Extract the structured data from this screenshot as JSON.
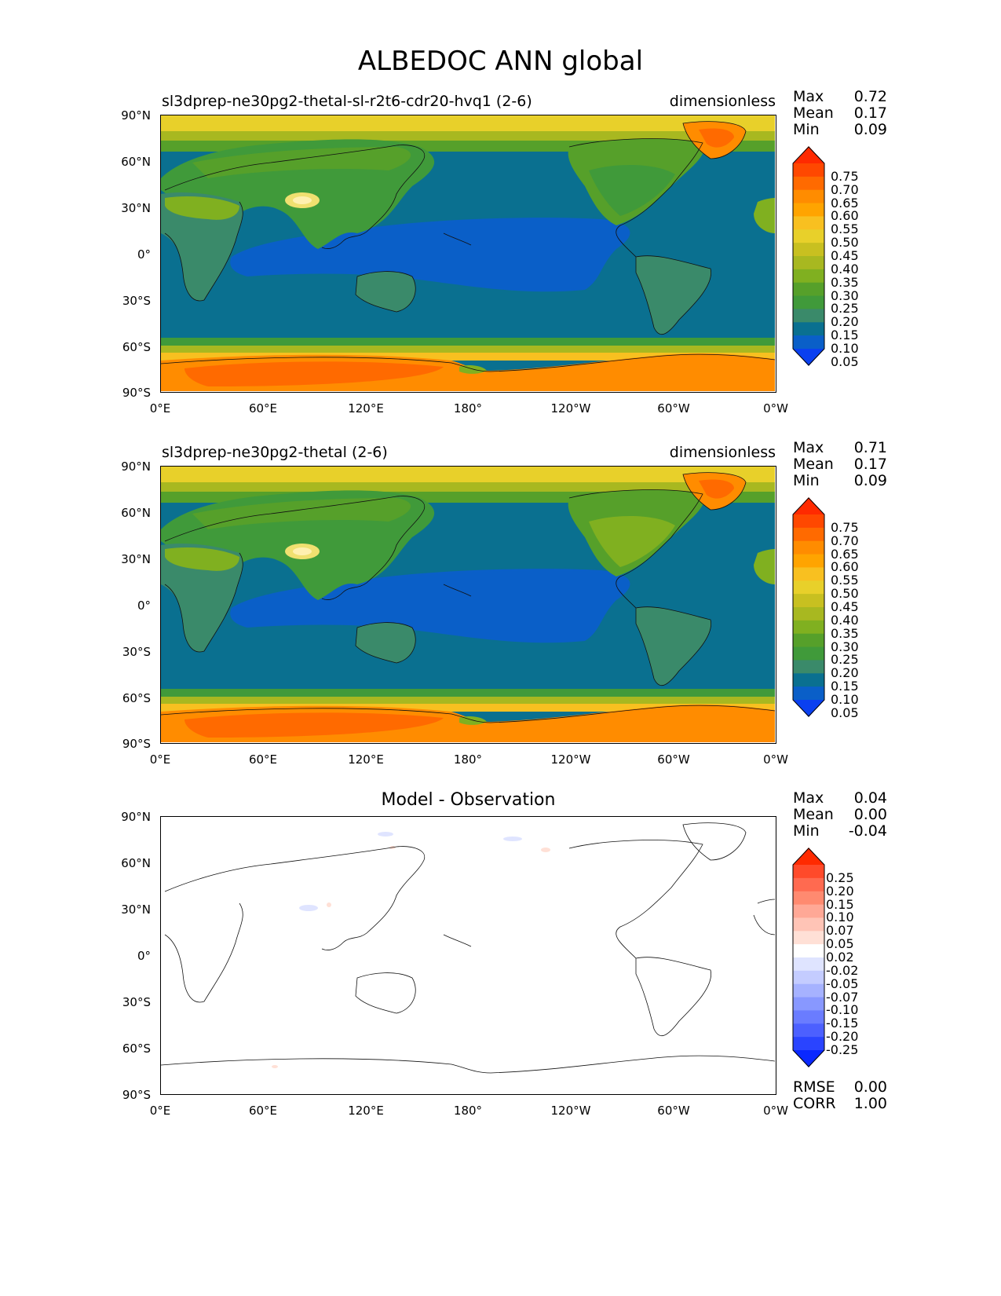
{
  "figure": {
    "title": "ALBEDOC ANN global",
    "units_label": "dimensionless",
    "lat_ticks": [
      "90°N",
      "60°N",
      "30°N",
      "0°",
      "30°S",
      "60°S",
      "90°S"
    ],
    "lon_ticks": [
      "0°E",
      "60°E",
      "120°E",
      "180°",
      "120°W",
      "60°W",
      "0°W"
    ]
  },
  "panels": [
    {
      "title": "sl3dprep-ne30pg2-thetal-sl-r2t6-cdr20-hvq1 (2-6)",
      "stats": [
        {
          "name": "Max",
          "value": "0.72"
        },
        {
          "name": "Mean",
          "value": "0.17"
        },
        {
          "name": "Min",
          "value": "0.09"
        }
      ]
    },
    {
      "title": "sl3dprep-ne30pg2-thetal (2-6)",
      "stats": [
        {
          "name": "Max",
          "value": "0.71"
        },
        {
          "name": "Mean",
          "value": "0.17"
        },
        {
          "name": "Min",
          "value": "0.09"
        }
      ]
    },
    {
      "title": "Model - Observation",
      "stats": [
        {
          "name": "Max",
          "value": "0.04"
        },
        {
          "name": "Mean",
          "value": "0.00"
        },
        {
          "name": "Min",
          "value": "-0.04"
        }
      ],
      "metrics": [
        {
          "name": "RMSE",
          "value": "0.00"
        },
        {
          "name": "CORR",
          "value": "1.00"
        }
      ]
    }
  ],
  "colorbars": {
    "albedo": {
      "labels": [
        "0.75",
        "0.70",
        "0.65",
        "0.60",
        "0.55",
        "0.50",
        "0.45",
        "0.40",
        "0.35",
        "0.30",
        "0.25",
        "0.20",
        "0.15",
        "0.10",
        "0.05"
      ],
      "colors_top_to_bottom": [
        "#ff2a00",
        "#ff4800",
        "#ff6a00",
        "#ff8c00",
        "#ffa400",
        "#f8c020",
        "#e8d02a",
        "#c8c020",
        "#a8b820",
        "#80b020",
        "#56a02a",
        "#409a3a",
        "#3a8a6a",
        "#0a7090",
        "#0a5fc8",
        "#0a40f0"
      ]
    },
    "diff": {
      "labels": [
        "0.25",
        "0.20",
        "0.15",
        "0.10",
        "0.07",
        "0.05",
        "0.02",
        "-0.02",
        "-0.05",
        "-0.07",
        "-0.10",
        "-0.15",
        "-0.20",
        "-0.25"
      ],
      "colors_top_to_bottom": [
        "#ff2a00",
        "#ff4a2a",
        "#ff6a50",
        "#ff8a70",
        "#ffa896",
        "#ffc4b6",
        "#ffe0d6",
        "#ffffff",
        "#dfe4ff",
        "#c4ccff",
        "#a6b2ff",
        "#8898ff",
        "#6a7cff",
        "#4c60ff",
        "#2a44ff",
        "#0a28ff"
      ]
    }
  }
}
